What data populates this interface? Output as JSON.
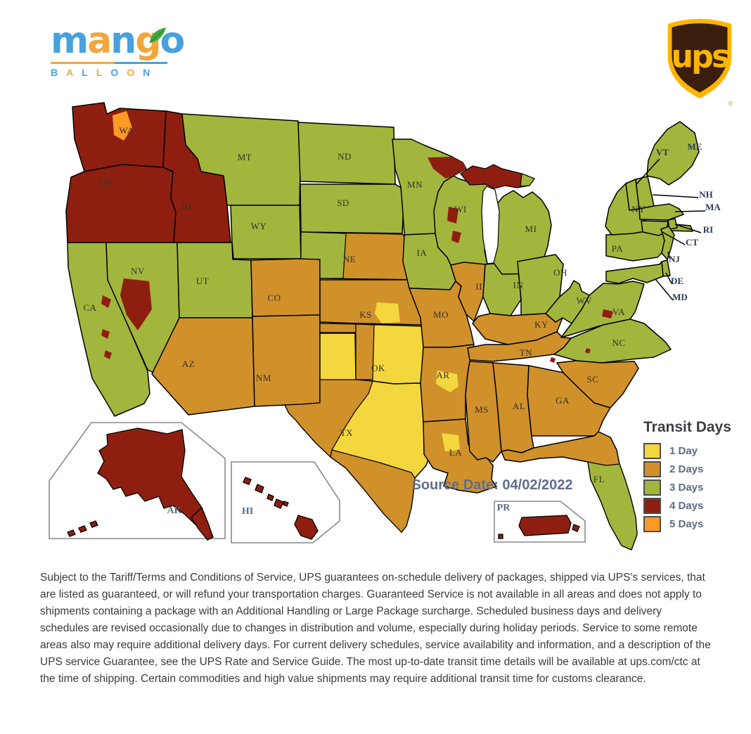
{
  "brand": {
    "word_letters": [
      {
        "ch": "m",
        "color": "#47A1DC"
      },
      {
        "ch": "a",
        "color": "#F1A63C"
      },
      {
        "ch": "n",
        "color": "#47A1DC"
      },
      {
        "ch": "g",
        "color": "#F1A63C"
      },
      {
        "ch": "o",
        "color": "#47A1DC"
      }
    ],
    "subtitle_letters": [
      {
        "ch": "B",
        "color": "#47A1DC"
      },
      {
        "ch": "A",
        "color": "#F1A63C"
      },
      {
        "ch": "L",
        "color": "#47A1DC"
      },
      {
        "ch": "L",
        "color": "#F1A63C"
      },
      {
        "ch": "O",
        "color": "#47A1DC"
      },
      {
        "ch": "O",
        "color": "#F1A63C"
      },
      {
        "ch": "N",
        "color": "#47A1DC"
      }
    ],
    "leaf_color": "#3FA93F"
  },
  "ups_logo": {
    "text": "ups",
    "registered": "®",
    "gold": "#FFB500",
    "brown": "#3A1F0F"
  },
  "legend": {
    "title": "Transit Days",
    "items": [
      {
        "label": "1 Day",
        "days": 1
      },
      {
        "label": "2 Days",
        "days": 2
      },
      {
        "label": "3 Days",
        "days": 3
      },
      {
        "label": "4 Days",
        "days": 4
      },
      {
        "label": "5 Days",
        "days": 5
      }
    ]
  },
  "day_colors": {
    "1": "#F4D73F",
    "2": "#D0912B",
    "3": "#A2B63D",
    "4": "#8E1F10",
    "5": "#FB9A27"
  },
  "map": {
    "source_date": "Source Date: 04/02/2022",
    "states": [
      {
        "id": "WA",
        "label": "WA",
        "days": 4
      },
      {
        "id": "OR",
        "label": "OR",
        "days": 4
      },
      {
        "id": "CA",
        "label": "CA",
        "days": 3
      },
      {
        "id": "NV",
        "label": "NV",
        "days": 3
      },
      {
        "id": "ID",
        "label": "ID",
        "days": 4
      },
      {
        "id": "MT",
        "label": "MT",
        "days": 3
      },
      {
        "id": "WY",
        "label": "WY",
        "days": 3
      },
      {
        "id": "UT",
        "label": "UT",
        "days": 3
      },
      {
        "id": "CO",
        "label": "CO",
        "days": 2
      },
      {
        "id": "AZ",
        "label": "AZ",
        "days": 2
      },
      {
        "id": "NM",
        "label": "NM",
        "days": 2
      },
      {
        "id": "ND",
        "label": "ND",
        "days": 3
      },
      {
        "id": "SD",
        "label": "SD",
        "days": 3
      },
      {
        "id": "NE",
        "label": "NE",
        "days": 2
      },
      {
        "id": "KS",
        "label": "KS",
        "days": 2
      },
      {
        "id": "OK",
        "label": "OK",
        "days": 1
      },
      {
        "id": "TX",
        "label": "TX",
        "days": 1
      },
      {
        "id": "MN",
        "label": "MN",
        "days": 3
      },
      {
        "id": "IA",
        "label": "IA",
        "days": 3
      },
      {
        "id": "MO",
        "label": "MO",
        "days": 2
      },
      {
        "id": "AR",
        "label": "AR",
        "days": 2
      },
      {
        "id": "LA",
        "label": "LA",
        "days": 2
      },
      {
        "id": "WI",
        "label": "WI",
        "days": 3
      },
      {
        "id": "IL",
        "label": "IL",
        "days": 2
      },
      {
        "id": "IN",
        "label": "IN",
        "days": 3
      },
      {
        "id": "MI",
        "label": "MI",
        "days": 3
      },
      {
        "id": "OH",
        "label": "OH",
        "days": 3
      },
      {
        "id": "KY",
        "label": "KY",
        "days": 2
      },
      {
        "id": "TN",
        "label": "TN",
        "days": 2
      },
      {
        "id": "MS",
        "label": "MS",
        "days": 2
      },
      {
        "id": "AL",
        "label": "AL",
        "days": 2
      },
      {
        "id": "GA",
        "label": "GA",
        "days": 2
      },
      {
        "id": "FL",
        "label": "FL",
        "days": 2
      },
      {
        "id": "SC",
        "label": "SC",
        "days": 2
      },
      {
        "id": "NC",
        "label": "NC",
        "days": 3
      },
      {
        "id": "VA",
        "label": "VA",
        "days": 3
      },
      {
        "id": "WV",
        "label": "WV",
        "days": 3
      },
      {
        "id": "PA",
        "label": "PA",
        "days": 3
      },
      {
        "id": "NY",
        "label": "NY",
        "days": 3
      },
      {
        "id": "ME",
        "label": "ME",
        "days": 3
      },
      {
        "id": "VT",
        "label": "VT",
        "days": 3
      },
      {
        "id": "NH",
        "label": "NH",
        "days": 3
      },
      {
        "id": "MA",
        "label": "MA",
        "days": 3
      },
      {
        "id": "RI",
        "label": "RI",
        "days": 3
      },
      {
        "id": "CT",
        "label": "CT",
        "days": 3
      },
      {
        "id": "NJ",
        "label": "NJ",
        "days": 3
      },
      {
        "id": "DE",
        "label": "DE",
        "days": 3
      },
      {
        "id": "MD",
        "label": "MD",
        "days": 3
      }
    ],
    "insets": [
      {
        "id": "AK",
        "label": "AK",
        "days": 4
      },
      {
        "id": "HI",
        "label": "HI",
        "days": 4
      },
      {
        "id": "PR",
        "label": "PR",
        "days": 4
      }
    ],
    "patches": [
      {
        "id": "WA5",
        "days": 5
      },
      {
        "id": "NVr",
        "days": 4
      },
      {
        "id": "CAr1",
        "days": 4
      },
      {
        "id": "CAr2",
        "days": 4
      },
      {
        "id": "CAr3",
        "days": 4
      },
      {
        "id": "NEg",
        "days": 3
      },
      {
        "id": "KSy",
        "days": 1
      },
      {
        "id": "OKo1",
        "days": 2
      },
      {
        "id": "OKo2",
        "days": 2
      },
      {
        "id": "TXw",
        "days": 2
      },
      {
        "id": "TXs",
        "days": 2
      },
      {
        "id": "ARy",
        "days": 1
      },
      {
        "id": "LAy",
        "days": 1
      },
      {
        "id": "MNr",
        "days": 4
      },
      {
        "id": "WIr1",
        "days": 4
      },
      {
        "id": "WIr2",
        "days": 4
      },
      {
        "id": "MIUP",
        "days": 4
      },
      {
        "id": "UPg",
        "days": 3
      },
      {
        "id": "VAr",
        "days": 4
      },
      {
        "id": "NCr",
        "days": 4
      },
      {
        "id": "TNr",
        "days": 4
      },
      {
        "id": "FLs",
        "days": 3
      }
    ]
  },
  "footer": {
    "paragraph": "Subject to the Tariff/Terms and Conditions of Service, UPS guarantees on-schedule delivery of packages, shipped via UPS's services, that are listed as guaranteed, or will refund your transportation charges. Guaranteed Service is not available in all areas and does not apply to shipments containing a package with an Additional Handling or Large Package surcharge. Scheduled business days and delivery schedules are revised occasionally due to changes in distribution and volume, especially during holiday periods. Service to some remote areas also may require additional delivery days. For current delivery schedules, service availability and information, and a description of the UPS service Guarantee, see the UPS Rate and Service Guide. The most up-to-date transit time details will be available at ups.com/ctc at the time of shipping. Certain commodities and high value shipments may require additional transit time for customs clearance."
  }
}
